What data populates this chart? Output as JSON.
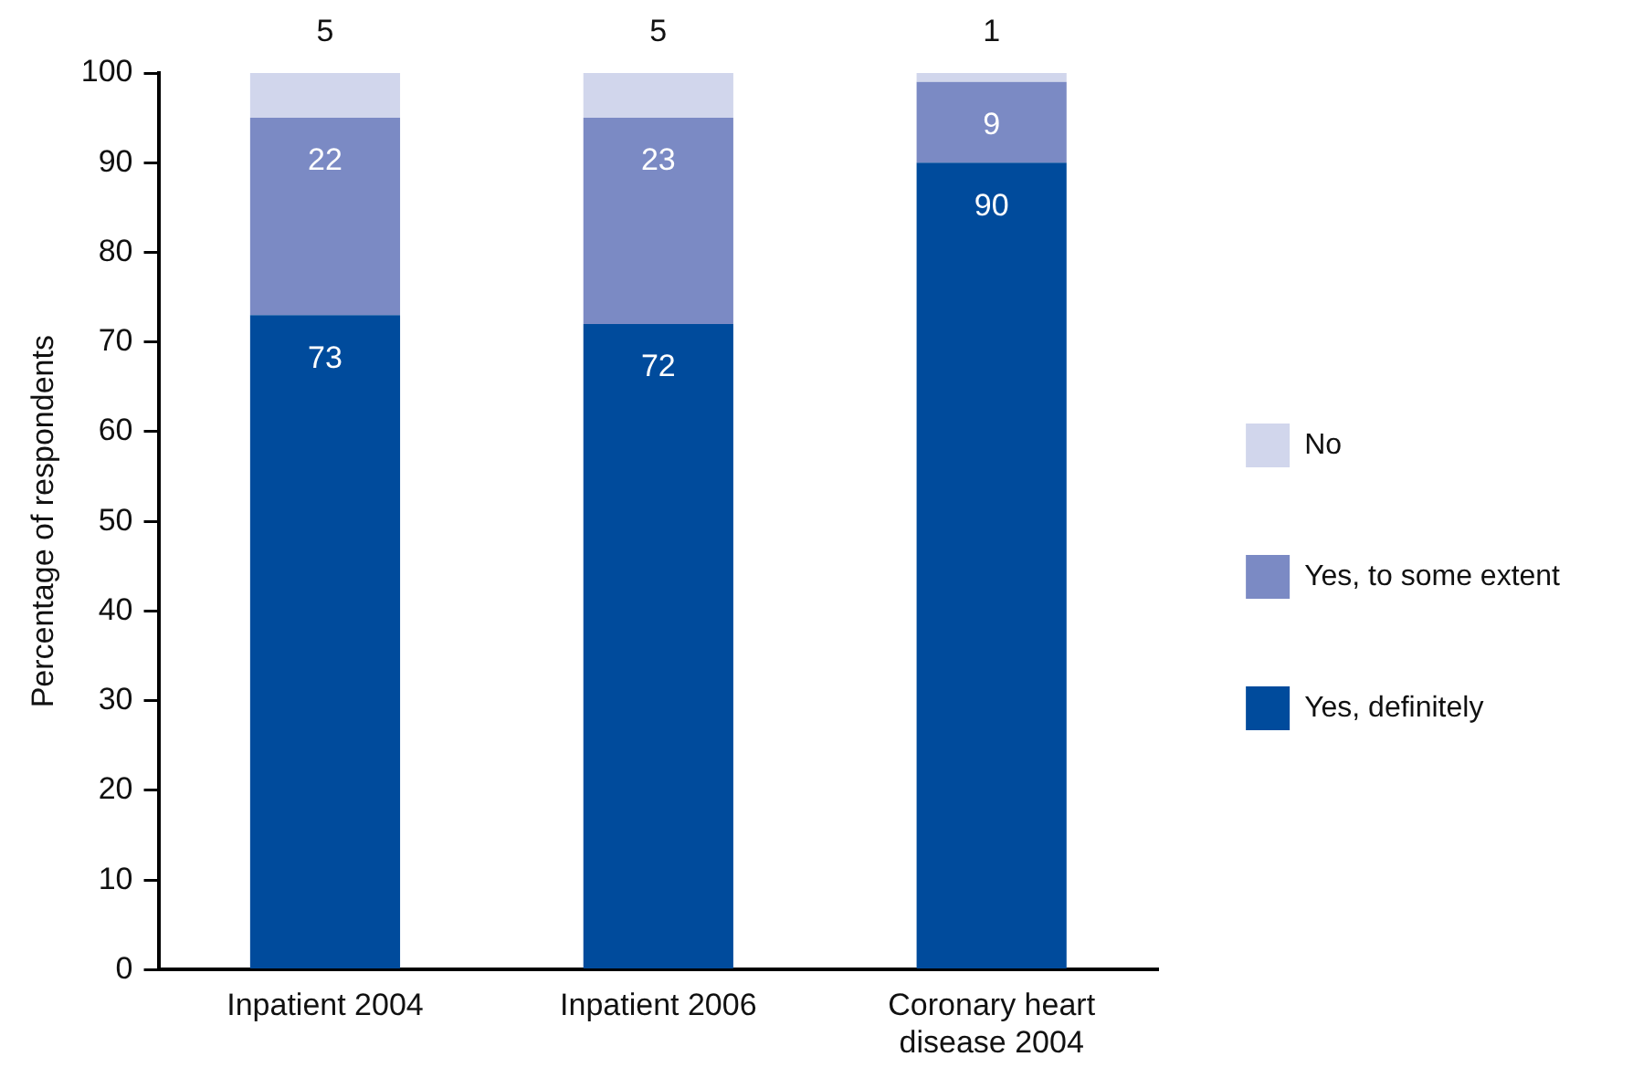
{
  "chart_data": {
    "type": "bar",
    "stacked": true,
    "ylabel": "Percentage of respondents",
    "categories": [
      "Inpatient 2004",
      "Inpatient 2006",
      "Coronary heart disease 2004"
    ],
    "series": [
      {
        "name": "Yes, definitely",
        "color": "#004b9c",
        "values": [
          73,
          72,
          90
        ]
      },
      {
        "name": "Yes, to some extent",
        "color": "#7b8ac4",
        "values": [
          22,
          23,
          9
        ]
      },
      {
        "name": "No",
        "color": "#d1d6ec",
        "values": [
          5,
          5,
          1
        ]
      }
    ],
    "ylim": [
      0,
      100
    ],
    "yticks": [
      0,
      10,
      20,
      30,
      40,
      50,
      60,
      70,
      80,
      90,
      100
    ],
    "grid": false,
    "legend": "right",
    "data_labels": true
  }
}
